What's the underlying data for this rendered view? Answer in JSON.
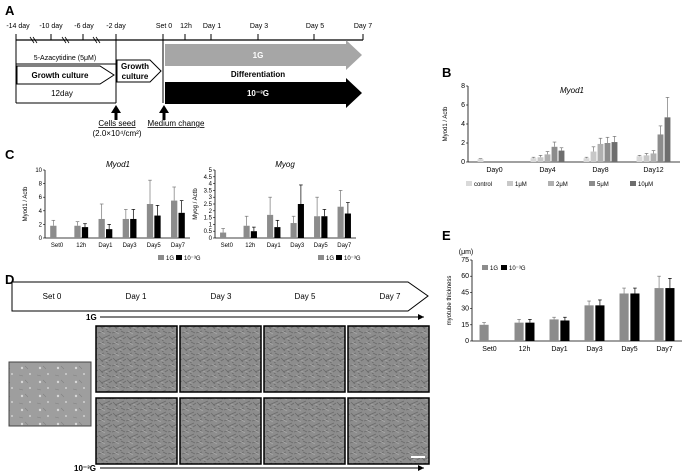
{
  "panels": {
    "A": {
      "label": "A",
      "timepoints": [
        "-14 day",
        "-10 day",
        "-6 day",
        "-2 day",
        "Set 0",
        "12h",
        "Day 1",
        "Day 3",
        "Day 5",
        "Day 7"
      ],
      "treatment": "5-Azacytidine (5μM)",
      "growth_culture": "Growth culture",
      "growth_culture_2a": "Growth",
      "growth_culture_2b": "culture",
      "duration": "12day",
      "arrow_1g": "1G",
      "differentiation": "Differentiation",
      "arrow_micro": "10⁻³G",
      "cells_seed": "Cells seed",
      "cells_density": "(2.0×10⁴/cm²)",
      "medium_change": "Medium change"
    },
    "B": {
      "label": "B"
    },
    "C": {
      "label": "C"
    },
    "D": {
      "label": "D",
      "timeline": [
        "Set 0",
        "Day 1",
        "Day 3",
        "Day 5",
        "Day 7"
      ],
      "row_1g": "1G",
      "row_micro": "10⁻³G"
    },
    "E": {
      "label": "E"
    }
  },
  "chart_data": [
    {
      "id": "B",
      "type": "bar",
      "title": "Myod1",
      "ylabel": "Myod1 / Actb",
      "ylim": [
        0,
        8
      ],
      "yticks": [
        0,
        2,
        4,
        6,
        8
      ],
      "categories": [
        "Day0",
        "Day4",
        "Day8",
        "Day12"
      ],
      "series": [
        {
          "name": "control",
          "color": "#d9d9d9",
          "values": [
            0.3,
            0.4,
            0.4,
            0.6
          ],
          "errors": [
            0.05,
            0.1,
            0.1,
            0.1
          ]
        },
        {
          "name": "1μM",
          "color": "#c8c8c8",
          "values": [
            null,
            0.5,
            1.1,
            0.7
          ],
          "errors": [
            null,
            0.2,
            0.5,
            0.2
          ]
        },
        {
          "name": "2μM",
          "color": "#b0b0b0",
          "values": [
            null,
            0.8,
            1.9,
            0.9
          ],
          "errors": [
            null,
            0.3,
            0.6,
            0.3
          ]
        },
        {
          "name": "5μM",
          "color": "#8c8c8c",
          "values": [
            null,
            1.6,
            2.0,
            2.9
          ],
          "errors": [
            null,
            0.5,
            0.6,
            0.9
          ]
        },
        {
          "name": "10μM",
          "color": "#6e6e6e",
          "values": [
            null,
            1.2,
            2.1,
            4.7
          ],
          "errors": [
            null,
            0.3,
            0.6,
            2.1
          ]
        }
      ],
      "legend_position": "bottom"
    },
    {
      "id": "C1",
      "type": "bar",
      "title": "Myod1",
      "ylabel": "Myod1 / Actb",
      "ylim": [
        0,
        10
      ],
      "yticks": [
        0,
        2,
        4,
        6,
        8,
        10
      ],
      "categories": [
        "Set0",
        "12h",
        "Day1",
        "Day3",
        "Day5",
        "Day7"
      ],
      "series": [
        {
          "name": "1G",
          "color": "#8c8c8c",
          "values": [
            1.8,
            1.8,
            2.8,
            2.8,
            5.0,
            5.5
          ],
          "errors": [
            0.8,
            0.6,
            2.2,
            1.4,
            3.5,
            2.0
          ]
        },
        {
          "name": "10⁻³G",
          "color": "#000000",
          "values": [
            null,
            1.6,
            1.3,
            2.8,
            3.3,
            3.7
          ],
          "errors": [
            null,
            0.5,
            0.7,
            1.4,
            1.5,
            1.8
          ]
        }
      ],
      "legend_position": "bottom"
    },
    {
      "id": "C2",
      "type": "bar",
      "title": "Myog",
      "ylabel": "Myog / Actb",
      "ylim": [
        0,
        5
      ],
      "yticks": [
        0,
        0.5,
        1,
        1.5,
        2,
        2.5,
        3,
        3.5,
        4,
        4.5,
        5
      ],
      "categories": [
        "Set0",
        "12h",
        "Day1",
        "Day3",
        "Day5",
        "Day7"
      ],
      "series": [
        {
          "name": "1G",
          "color": "#8c8c8c",
          "values": [
            0.4,
            0.9,
            1.7,
            1.1,
            1.6,
            2.3
          ],
          "errors": [
            0.3,
            0.7,
            1.3,
            0.5,
            1.4,
            1.2
          ]
        },
        {
          "name": "10⁻³G",
          "color": "#000000",
          "values": [
            null,
            0.5,
            0.8,
            2.5,
            1.6,
            1.8
          ],
          "errors": [
            null,
            0.3,
            0.5,
            1.4,
            0.5,
            0.8
          ]
        }
      ],
      "legend_position": "bottom"
    },
    {
      "id": "E",
      "type": "bar",
      "unit": "(μm)",
      "ylabel": "myotube thickness",
      "ylim": [
        0,
        75
      ],
      "yticks": [
        0,
        15,
        30,
        45,
        60,
        75
      ],
      "categories": [
        "Set0",
        "12h",
        "Day1",
        "Day3",
        "Day5",
        "Day7"
      ],
      "series": [
        {
          "name": "1G",
          "color": "#8c8c8c",
          "values": [
            15,
            17,
            20,
            33,
            44,
            49
          ],
          "errors": [
            2,
            3,
            2,
            4,
            5,
            11
          ]
        },
        {
          "name": "10⁻³G",
          "color": "#000000",
          "values": [
            null,
            17,
            19,
            33,
            44,
            49
          ],
          "errors": [
            null,
            3,
            3,
            5,
            5,
            9
          ]
        }
      ],
      "legend_position": "top-left"
    }
  ]
}
